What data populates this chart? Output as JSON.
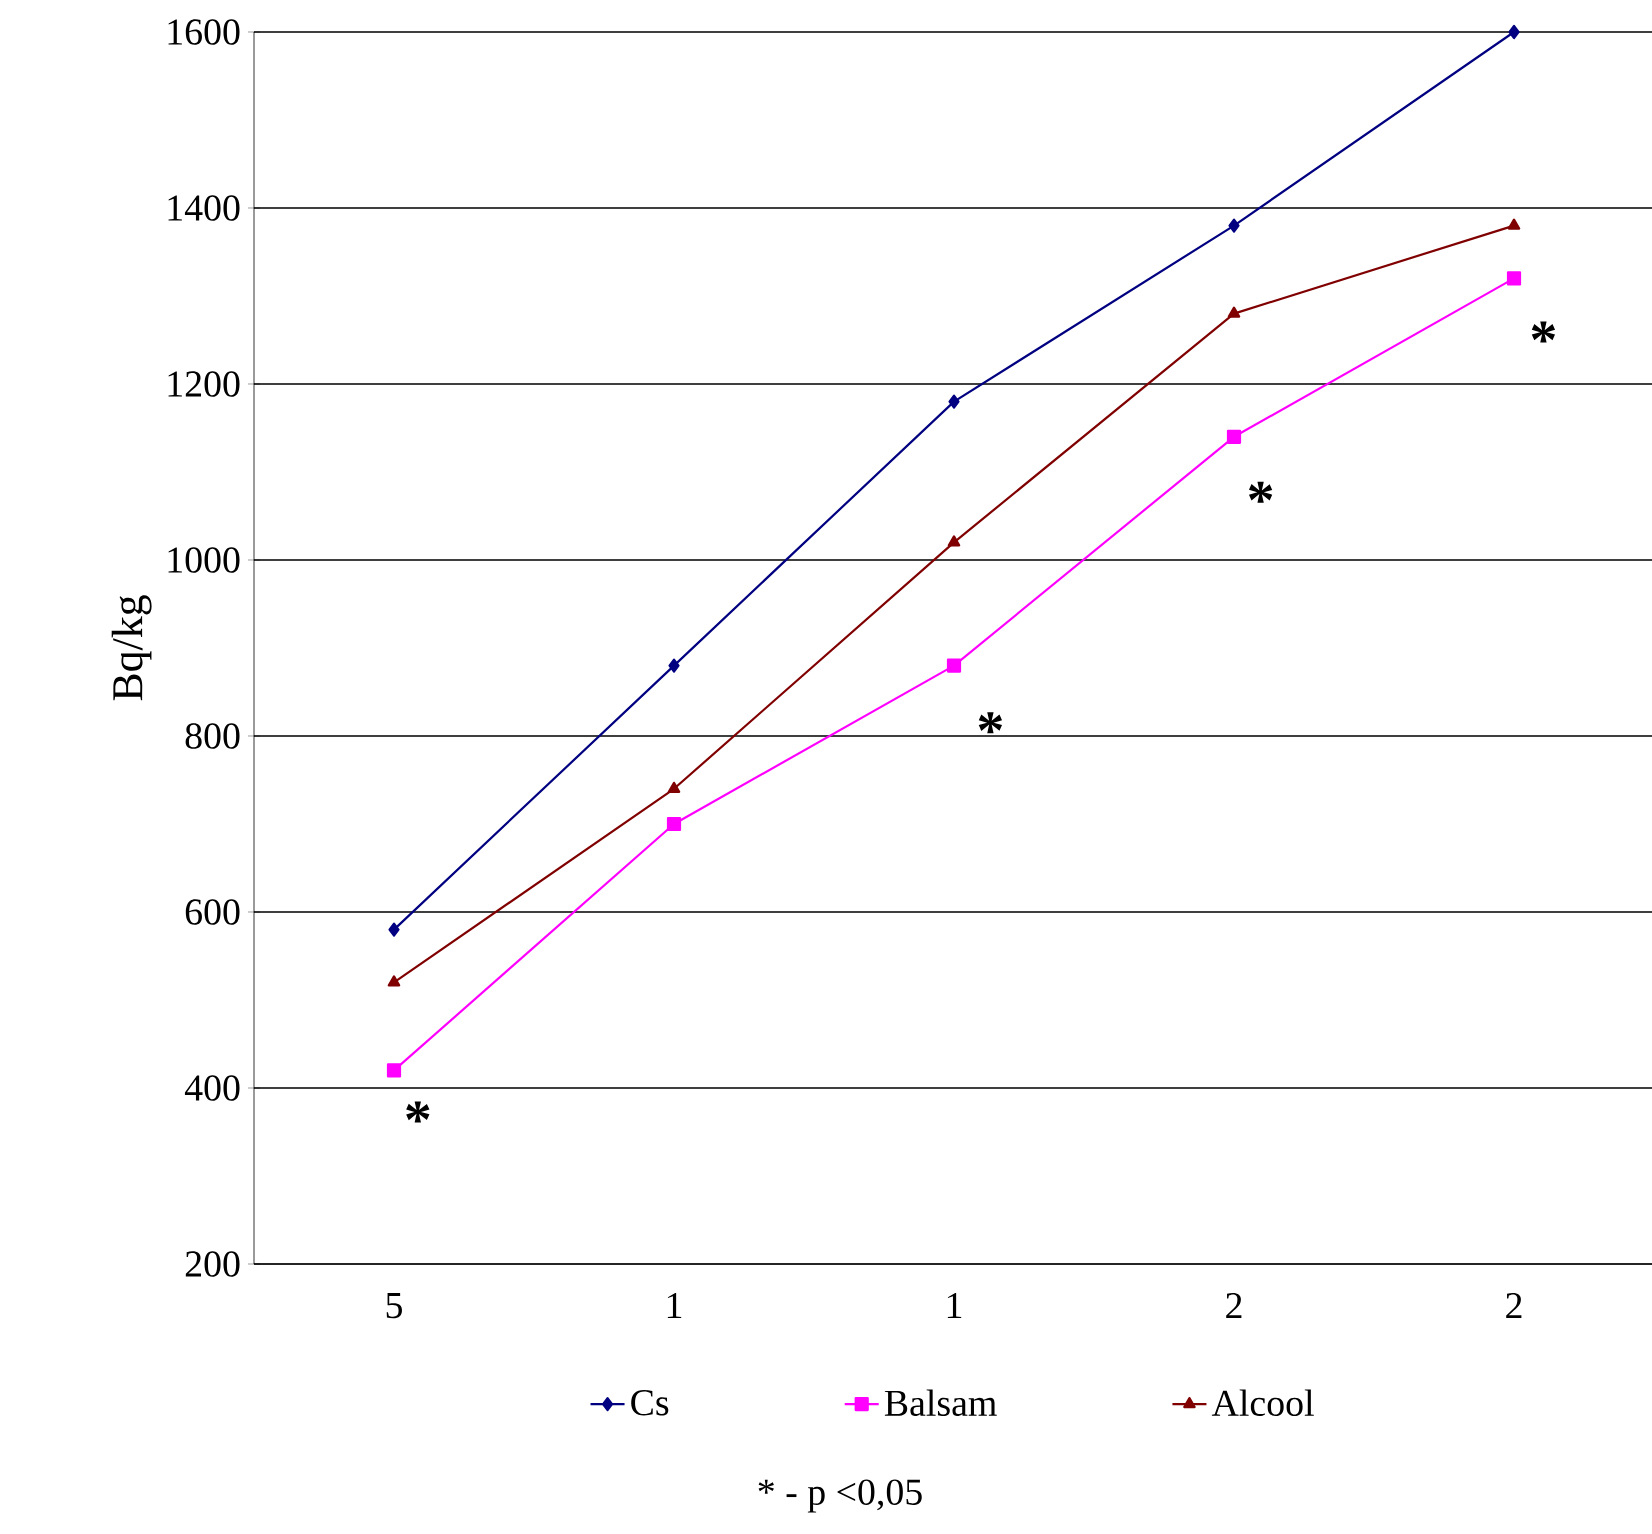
{
  "chart_data": {
    "type": "line",
    "ylabel": "Bq/kg",
    "categories": [
      "5",
      "1",
      "1",
      "2",
      "2"
    ],
    "ylim": [
      200,
      1600
    ],
    "yticks": [
      200,
      400,
      600,
      800,
      1000,
      1200,
      1400,
      1600
    ],
    "grid": "y",
    "legend": "bottom",
    "line_style": "solid",
    "series": [
      {
        "name": "Cs",
        "color": "#000080",
        "marker": "diamond",
        "values": [
          580,
          880,
          1180,
          1380,
          1600
        ]
      },
      {
        "name": "Balsam",
        "color": "#ff00ff",
        "marker": "square",
        "values": [
          420,
          700,
          880,
          1140,
          1320
        ]
      },
      {
        "name": "Alcool",
        "color": "#800000",
        "marker": "triangle",
        "values": [
          520,
          740,
          1020,
          1280,
          1380
        ]
      }
    ],
    "annotations": [
      "*",
      "*",
      "*",
      "*",
      "* - p <0,05"
    ]
  }
}
